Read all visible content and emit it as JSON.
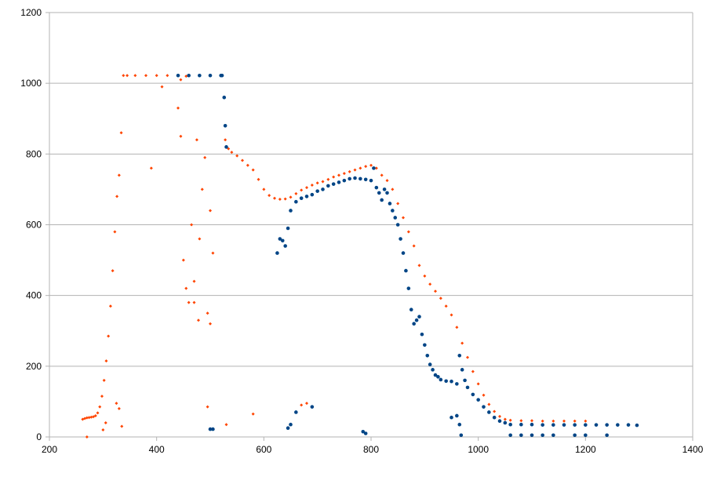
{
  "chart_data": {
    "type": "scatter",
    "title": "",
    "xlabel": "",
    "ylabel": "",
    "xlim": [
      200,
      1400
    ],
    "ylim": [
      0,
      1200
    ],
    "x_ticks": [
      200,
      400,
      600,
      800,
      1000,
      1200,
      1400
    ],
    "y_ticks": [
      0,
      200,
      400,
      600,
      800,
      1000,
      1200
    ],
    "x_tick_labels": [
      "200",
      "400",
      "600",
      "800",
      "1000",
      "1200",
      "1400"
    ],
    "y_tick_labels": [
      "0",
      "200",
      "400",
      "600",
      "800",
      "1000",
      "1200"
    ],
    "grid": "horizontal",
    "legend": "none",
    "series": [
      {
        "color": "#ff4500",
        "marker": "small-diamond",
        "values": [
          [
            262,
            50
          ],
          [
            266,
            52
          ],
          [
            270,
            54
          ],
          [
            274,
            55
          ],
          [
            278,
            56
          ],
          [
            282,
            57
          ],
          [
            286,
            60
          ],
          [
            290,
            68
          ],
          [
            294,
            85
          ],
          [
            298,
            115
          ],
          [
            302,
            160
          ],
          [
            306,
            215
          ],
          [
            310,
            285
          ],
          [
            314,
            370
          ],
          [
            318,
            470
          ],
          [
            322,
            580
          ],
          [
            326,
            680
          ],
          [
            330,
            740
          ],
          [
            334,
            860
          ],
          [
            338,
            1022
          ],
          [
            345,
            1022
          ],
          [
            360,
            1022
          ],
          [
            380,
            1022
          ],
          [
            400,
            1022
          ],
          [
            420,
            1022
          ],
          [
            440,
            1022
          ],
          [
            460,
            1022
          ],
          [
            480,
            1022
          ],
          [
            500,
            1022
          ],
          [
            520,
            1022
          ],
          [
            528,
            840
          ],
          [
            534,
            815
          ],
          [
            540,
            805
          ],
          [
            550,
            795
          ],
          [
            560,
            782
          ],
          [
            570,
            768
          ],
          [
            580,
            755
          ],
          [
            590,
            728
          ],
          [
            600,
            700
          ],
          [
            610,
            683
          ],
          [
            620,
            675
          ],
          [
            630,
            672
          ],
          [
            640,
            673
          ],
          [
            650,
            678
          ],
          [
            660,
            688
          ],
          [
            670,
            698
          ],
          [
            680,
            705
          ],
          [
            690,
            712
          ],
          [
            700,
            718
          ],
          [
            710,
            722
          ],
          [
            720,
            728
          ],
          [
            730,
            735
          ],
          [
            740,
            740
          ],
          [
            750,
            745
          ],
          [
            760,
            750
          ],
          [
            770,
            755
          ],
          [
            780,
            760
          ],
          [
            790,
            765
          ],
          [
            800,
            768
          ],
          [
            810,
            760
          ],
          [
            820,
            740
          ],
          [
            830,
            725
          ],
          [
            840,
            700
          ],
          [
            850,
            660
          ],
          [
            860,
            620
          ],
          [
            870,
            580
          ],
          [
            880,
            540
          ],
          [
            890,
            485
          ],
          [
            900,
            455
          ],
          [
            910,
            432
          ],
          [
            920,
            412
          ],
          [
            930,
            392
          ],
          [
            940,
            370
          ],
          [
            950,
            345
          ],
          [
            960,
            310
          ],
          [
            970,
            265
          ],
          [
            980,
            225
          ],
          [
            990,
            185
          ],
          [
            1000,
            150
          ],
          [
            1010,
            118
          ],
          [
            1020,
            92
          ],
          [
            1030,
            72
          ],
          [
            1040,
            58
          ],
          [
            1050,
            50
          ],
          [
            1060,
            47
          ],
          [
            1080,
            46
          ],
          [
            1100,
            46
          ],
          [
            1120,
            45
          ],
          [
            1140,
            45
          ],
          [
            1160,
            45
          ],
          [
            1180,
            45
          ],
          [
            1200,
            45
          ],
          [
            300,
            20
          ],
          [
            305,
            40
          ],
          [
            325,
            95
          ],
          [
            330,
            80
          ],
          [
            335,
            30
          ],
          [
            390,
            760
          ],
          [
            410,
            990
          ],
          [
            440,
            930
          ],
          [
            445,
            850
          ],
          [
            450,
            500
          ],
          [
            455,
            420
          ],
          [
            460,
            380
          ],
          [
            465,
            600
          ],
          [
            470,
            440
          ],
          [
            475,
            840
          ],
          [
            480,
            560
          ],
          [
            485,
            700
          ],
          [
            490,
            790
          ],
          [
            495,
            350
          ],
          [
            500,
            640
          ],
          [
            505,
            520
          ],
          [
            580,
            65
          ],
          [
            670,
            90
          ],
          [
            680,
            95
          ],
          [
            495,
            85
          ],
          [
            530,
            35
          ],
          [
            445,
            1010
          ],
          [
            455,
            1020
          ],
          [
            470,
            380
          ],
          [
            478,
            330
          ],
          [
            500,
            320
          ],
          [
            270,
            0
          ]
        ]
      },
      {
        "color": "#004586",
        "marker": "circle",
        "values": [
          [
            440,
            1022
          ],
          [
            460,
            1022
          ],
          [
            480,
            1022
          ],
          [
            500,
            1022
          ],
          [
            520,
            1022
          ],
          [
            522,
            1022
          ],
          [
            526,
            960
          ],
          [
            528,
            880
          ],
          [
            530,
            820
          ],
          [
            625,
            520
          ],
          [
            630,
            560
          ],
          [
            635,
            555
          ],
          [
            640,
            540
          ],
          [
            645,
            590
          ],
          [
            650,
            640
          ],
          [
            660,
            665
          ],
          [
            670,
            675
          ],
          [
            680,
            680
          ],
          [
            690,
            685
          ],
          [
            700,
            695
          ],
          [
            710,
            700
          ],
          [
            720,
            710
          ],
          [
            730,
            715
          ],
          [
            740,
            720
          ],
          [
            750,
            725
          ],
          [
            760,
            730
          ],
          [
            770,
            732
          ],
          [
            780,
            730
          ],
          [
            790,
            728
          ],
          [
            800,
            725
          ],
          [
            805,
            760
          ],
          [
            810,
            705
          ],
          [
            815,
            690
          ],
          [
            820,
            670
          ],
          [
            825,
            700
          ],
          [
            830,
            690
          ],
          [
            835,
            660
          ],
          [
            840,
            640
          ],
          [
            845,
            620
          ],
          [
            850,
            600
          ],
          [
            855,
            560
          ],
          [
            860,
            520
          ],
          [
            865,
            470
          ],
          [
            870,
            420
          ],
          [
            875,
            360
          ],
          [
            880,
            320
          ],
          [
            885,
            330
          ],
          [
            890,
            340
          ],
          [
            895,
            290
          ],
          [
            900,
            260
          ],
          [
            905,
            230
          ],
          [
            910,
            205
          ],
          [
            915,
            190
          ],
          [
            920,
            175
          ],
          [
            925,
            170
          ],
          [
            930,
            162
          ],
          [
            940,
            158
          ],
          [
            950,
            157
          ],
          [
            960,
            150
          ],
          [
            965,
            230
          ],
          [
            970,
            190
          ],
          [
            975,
            160
          ],
          [
            980,
            140
          ],
          [
            990,
            120
          ],
          [
            1000,
            105
          ],
          [
            1010,
            85
          ],
          [
            1020,
            70
          ],
          [
            1030,
            55
          ],
          [
            1040,
            45
          ],
          [
            1050,
            40
          ],
          [
            1060,
            35
          ],
          [
            1080,
            35
          ],
          [
            1100,
            35
          ],
          [
            1120,
            34
          ],
          [
            1140,
            34
          ],
          [
            1160,
            34
          ],
          [
            1180,
            34
          ],
          [
            1200,
            34
          ],
          [
            1220,
            34
          ],
          [
            1240,
            34
          ],
          [
            1260,
            34
          ],
          [
            1280,
            34
          ],
          [
            1296,
            33
          ],
          [
            500,
            22
          ],
          [
            505,
            22
          ],
          [
            645,
            25
          ],
          [
            650,
            35
          ],
          [
            660,
            70
          ],
          [
            690,
            85
          ],
          [
            785,
            15
          ],
          [
            790,
            10
          ],
          [
            950,
            55
          ],
          [
            960,
            60
          ],
          [
            965,
            35
          ],
          [
            968,
            5
          ],
          [
            1060,
            5
          ],
          [
            1080,
            5
          ],
          [
            1100,
            5
          ],
          [
            1120,
            5
          ],
          [
            1140,
            5
          ],
          [
            1180,
            5
          ],
          [
            1200,
            5
          ],
          [
            1240,
            5
          ]
        ]
      }
    ]
  }
}
